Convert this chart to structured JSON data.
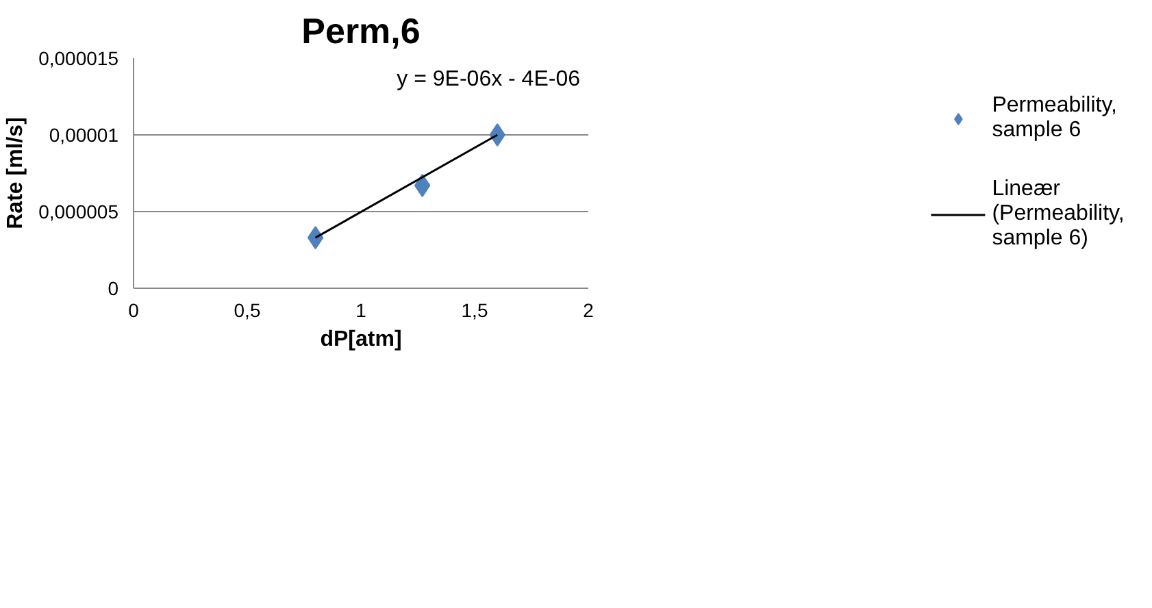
{
  "chart_data": {
    "type": "scatter",
    "title": "Perm,6",
    "xlabel": "dP[atm]",
    "ylabel": "Rate [ml/s]",
    "x": [
      0.8,
      1.27,
      1.6
    ],
    "series": [
      {
        "name": "Permeability, sample 6",
        "color": "#4f81bd",
        "marker": "diamond",
        "values": [
          3.3e-06,
          6.7e-06,
          1e-05
        ]
      },
      {
        "name": "Lineær (Permeability, sample 6)",
        "color": "#000000",
        "type": "line",
        "x": [
          0.8,
          1.6
        ],
        "values": [
          3.3e-06,
          1e-05
        ]
      }
    ],
    "xlim": [
      0,
      2
    ],
    "ylim": [
      0,
      1.5e-05
    ],
    "xticks": [
      0,
      {
        "value": 0.5,
        "label": "0,5"
      },
      1,
      {
        "value": 1.5,
        "label": "1,5"
      },
      2
    ],
    "yticks": [
      0,
      {
        "value": 5e-06,
        "label": "0,000005"
      },
      {
        "value": 1e-05,
        "label": "0,00001"
      },
      {
        "value": 1.5e-05,
        "label": "0,000015"
      }
    ],
    "grid": "y",
    "legend": "right",
    "annotations": [
      "y = 9E-06x - 4E-06"
    ]
  }
}
